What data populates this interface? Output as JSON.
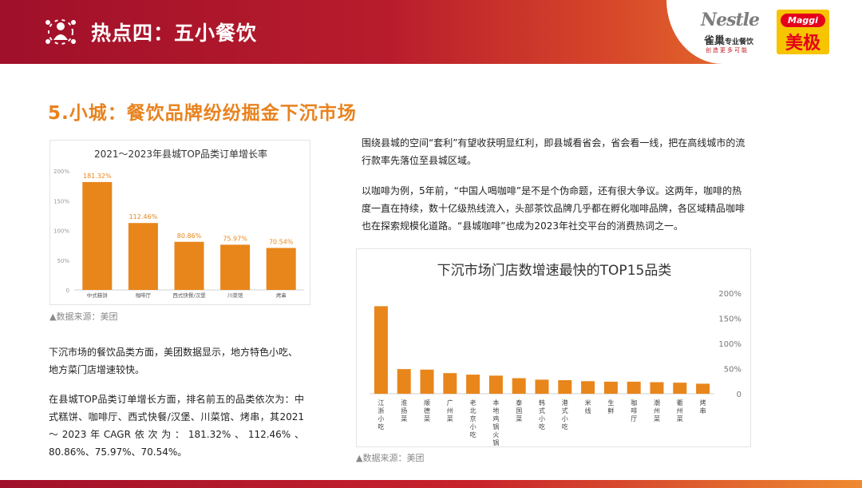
{
  "header": {
    "title": "热点四：五小餐饮",
    "brand_nestle": "Nestle",
    "brand_nestle_cn": "雀巢",
    "brand_nestle_cn2": "专业餐饮",
    "brand_nestle_sub": "创造更多可能",
    "brand_maggi": "Maggi",
    "brand_maggi_cn": "美极"
  },
  "section_title": "5.小城：餐饮品牌纷纷掘金下沉市场",
  "left": {
    "chart_source": "▲数据来源：美团",
    "para1": "下沉市场的餐饮品类方面，美团数据显示，地方特色小吃、地方菜门店增速较快。",
    "para2": "在县城TOP品类订单增长方面，排名前五的品类依次为：中式糕饼、咖啡厅、西式快餐/汉堡、川菜馆、烤串，其2021～2023年CAGR依次为：181.32%、112.46%、80.86%、75.97%、70.54%。"
  },
  "right": {
    "para1": "围绕县城的空间“套利”有望收获明显红利，即县城看省会，省会看一线，把在高线城市的流行款率先落位至县城区域。",
    "para2": "以咖啡为例，5年前，“中国人喝咖啡”是不是个伪命题，还有很大争议。这两年，咖啡的热度一直在持续，数十亿级热线流入，头部茶饮品牌几乎都在孵化咖啡品牌，各区域精品咖啡也在探索规模化道路。“县城咖啡”也成为2023年社交平台的消费热词之一。",
    "chart_source": "▲数据来源：美团"
  },
  "colors": {
    "bar": "#e8861b",
    "accent": "#e8821e",
    "header_red": "#a0102a"
  },
  "chart_data": [
    {
      "type": "bar",
      "title": "2021～2023年县城TOP品类订单增长率",
      "categories": [
        "中式糕饼",
        "咖啡厅",
        "西式快餐/汉堡",
        "川菜馆",
        "烤串"
      ],
      "values": [
        181.32,
        112.46,
        80.86,
        75.97,
        70.54
      ],
      "value_labels": [
        "181.32%",
        "112.46%",
        "80.86%",
        "75.97%",
        "70.54%"
      ],
      "yticks": [
        "0",
        "50%",
        "100%",
        "150%",
        "200%"
      ],
      "ylim": [
        0,
        200
      ],
      "grid": false,
      "legend": false
    },
    {
      "type": "bar",
      "title": "下沉市场门店数增速最快的TOP15品类",
      "categories": [
        "江浙小吃",
        "淮扬菜",
        "顺德菜",
        "广州菜",
        "老北京小吃",
        "本地鸡锅火锅",
        "泰国菜",
        "韩式小吃",
        "港式小吃",
        "米线",
        "生鲜",
        "咖啡厅",
        "潮州菜",
        "衢州菜",
        "烤串"
      ],
      "values": [
        174,
        49,
        48,
        41,
        38,
        36,
        31,
        28,
        27,
        25,
        24,
        24,
        23,
        22,
        20
      ],
      "yticks": [
        "0",
        "50%",
        "100%",
        "150%",
        "200%"
      ],
      "ylim": [
        0,
        200
      ],
      "y_axis_side": "right",
      "grid": false,
      "legend": false
    }
  ]
}
